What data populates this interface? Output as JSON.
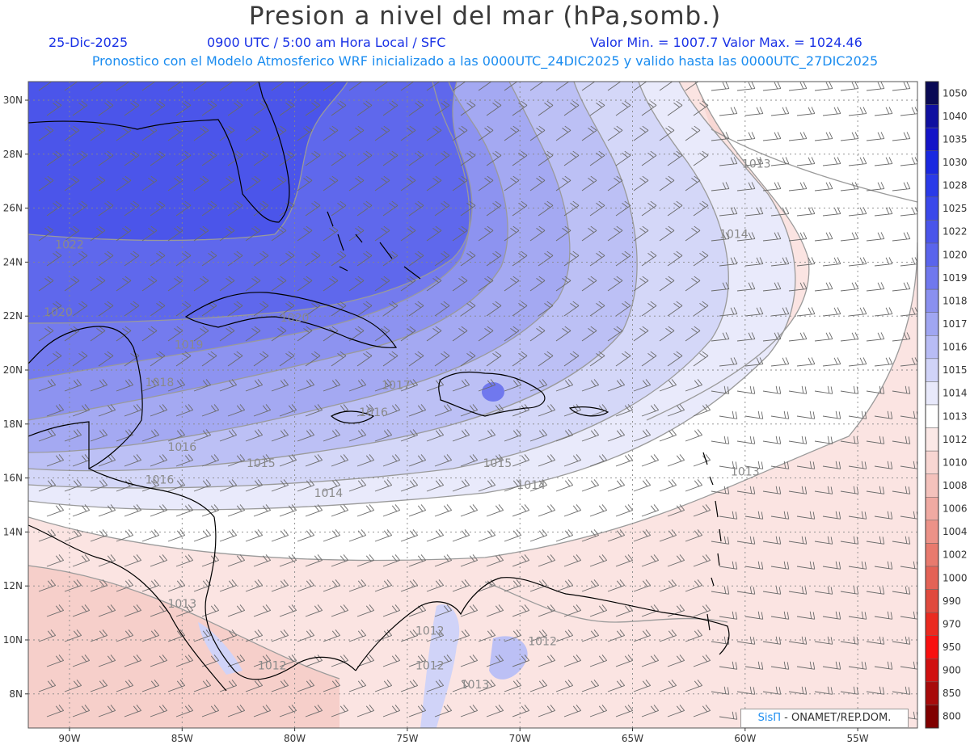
{
  "header": {
    "title": "Presion a nivel del mar (hPa,somb.)",
    "date": "25-Dic-2025",
    "time": "0900 UTC / 5:00 am Hora Local / SFC",
    "minmax": "Valor Min. = 1007.7  Valor Max. = 1024.46",
    "model_info": "Pronostico con el Modelo Atmosferico WRF inicializado a las 0000UTC_24DIC2025 y valido hasta las  0000UTC_27DIC2025"
  },
  "axes": {
    "lat_labels": [
      "30N",
      "28N",
      "26N",
      "24N",
      "22N",
      "20N",
      "18N",
      "16N",
      "14N",
      "12N",
      "10N",
      "8N"
    ],
    "lon_labels": [
      "90W",
      "85W",
      "80W",
      "75W",
      "70W",
      "65W",
      "60W",
      "55W"
    ]
  },
  "colorbar": {
    "levels": [
      "1050",
      "1040",
      "1035",
      "1030",
      "1028",
      "1025",
      "1022",
      "1020",
      "1019",
      "1018",
      "1017",
      "1016",
      "1015",
      "1014",
      "1013",
      "1012",
      "1010",
      "1008",
      "1006",
      "1004",
      "1002",
      "1000",
      "990",
      "970",
      "950",
      "900",
      "850",
      "800"
    ],
    "colors": [
      "#0a0a55",
      "#1010a0",
      "#1414c8",
      "#1a28e0",
      "#2a3ae8",
      "#3a48ea",
      "#4a55ea",
      "#5a64ec",
      "#7078ee",
      "#8a90f0",
      "#a0a6f2",
      "#b8bcf5",
      "#d0d3f8",
      "#e8e9fb",
      "#ffffff",
      "#fbe8e6",
      "#f8d6d2",
      "#f4c2bc",
      "#f0aaa2",
      "#ec9288",
      "#e87a6e",
      "#e46256",
      "#e04a3e",
      "#ea2a20",
      "#f81010",
      "#d01010",
      "#a80a0a",
      "#800000"
    ]
  },
  "contour_labels": [
    {
      "text": "1022",
      "lon": -90.0,
      "lat": 24.5
    },
    {
      "text": "1020",
      "lon": -90.5,
      "lat": 22.0
    },
    {
      "text": "1020",
      "lon": -80.0,
      "lat": 21.8
    },
    {
      "text": "1019",
      "lon": -84.7,
      "lat": 20.8
    },
    {
      "text": "1018",
      "lon": -86.0,
      "lat": 19.4
    },
    {
      "text": "1017",
      "lon": -75.5,
      "lat": 19.3
    },
    {
      "text": "1016",
      "lon": -76.5,
      "lat": 18.3
    },
    {
      "text": "1016",
      "lon": -85.0,
      "lat": 17.0
    },
    {
      "text": "1016",
      "lon": -86.0,
      "lat": 15.8
    },
    {
      "text": "1015",
      "lon": -81.5,
      "lat": 16.4
    },
    {
      "text": "1015",
      "lon": -71.0,
      "lat": 16.4
    },
    {
      "text": "1014",
      "lon": -78.5,
      "lat": 15.3
    },
    {
      "text": "1014",
      "lon": -69.5,
      "lat": 15.6
    },
    {
      "text": "1014",
      "lon": -60.5,
      "lat": 24.9
    },
    {
      "text": "1013",
      "lon": -59.5,
      "lat": 27.5
    },
    {
      "text": "1013",
      "lon": -60.0,
      "lat": 16.1
    },
    {
      "text": "1013",
      "lon": -85.0,
      "lat": 11.2
    },
    {
      "text": "1013",
      "lon": -72.0,
      "lat": 8.2
    },
    {
      "text": "1012",
      "lon": -74.0,
      "lat": 10.2
    },
    {
      "text": "1012",
      "lon": -69.0,
      "lat": 9.8
    },
    {
      "text": "1012",
      "lon": -81.0,
      "lat": 8.9
    },
    {
      "text": "1012",
      "lon": -74.0,
      "lat": 8.9
    }
  ],
  "colors": {
    "title": "#3a3a3a",
    "subtitle1": "#1a32e6",
    "subtitle2": "#1a8cf0"
  },
  "credit": {
    "brand": "SisΠ",
    "rest": " - ONAMET/REP.DOM."
  }
}
